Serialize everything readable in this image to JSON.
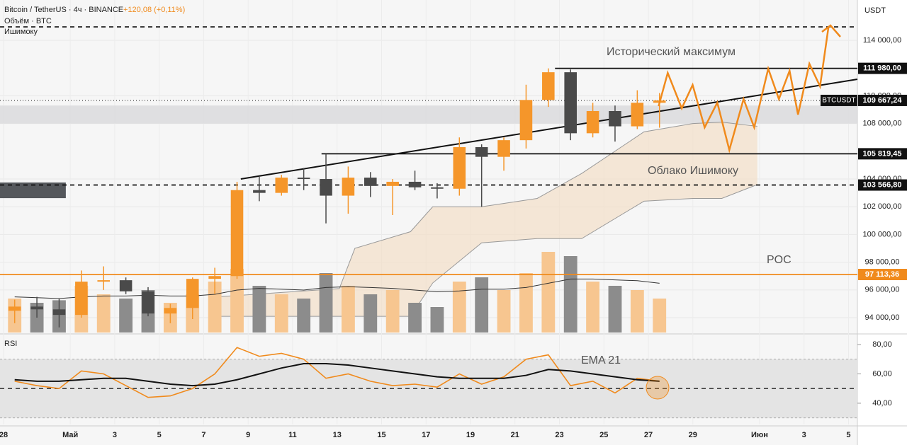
{
  "chart_data": {
    "type": "candlestick",
    "title": "Bitcoin / TetherUS · 4ч · BINANCE",
    "change": "+120,08 (+0,11%)",
    "indicators": [
      "Объём · BTC",
      "Ишимоку"
    ],
    "currency": "USDT",
    "up_color": "#f5962a",
    "down_color": "#4a4a4a",
    "grid": true,
    "x": [
      0.5,
      1.5,
      2.5,
      3.5,
      4.5,
      5.5,
      6.5,
      7.5,
      8.5,
      9.5,
      10.5,
      11.5,
      12.5,
      13.5,
      14.5,
      15.5,
      16.5,
      17.5,
      18.5,
      19.5,
      20.5,
      21.5,
      22.5,
      23.5,
      24.5,
      25.5,
      26.5,
      27.5,
      28.5,
      29.5
    ],
    "open": [
      94500,
      94800,
      94600,
      94200,
      96600,
      96700,
      95900,
      94300,
      94700,
      96800,
      97000,
      103200,
      103000,
      104100,
      104000,
      102800,
      104100,
      103500,
      103800,
      103400,
      103300,
      106300,
      105600,
      106800,
      109700,
      111700,
      107300,
      108900,
      107800,
      109500
    ],
    "high": [
      95300,
      95500,
      95400,
      97400,
      97700,
      96900,
      96200,
      95000,
      96900,
      97600,
      103800,
      104200,
      104300,
      104800,
      105800,
      104900,
      104500,
      104000,
      104600,
      103700,
      107000,
      106500,
      107000,
      110800,
      111980,
      111900,
      109500,
      109300,
      110400,
      110200
    ],
    "low": [
      93600,
      94000,
      93300,
      94000,
      96000,
      95700,
      94100,
      93600,
      93900,
      95700,
      96800,
      102400,
      102800,
      103200,
      100800,
      101500,
      102700,
      101400,
      103200,
      102600,
      102800,
      102000,
      104600,
      106200,
      109200,
      106800,
      107000,
      106700,
      107600,
      107700
    ],
    "close": [
      94800,
      94600,
      94200,
      96600,
      96700,
      95900,
      94300,
      94700,
      96800,
      97000,
      103200,
      103000,
      104100,
      104000,
      102800,
      104100,
      103500,
      103800,
      103400,
      103300,
      106300,
      105600,
      106800,
      109700,
      111700,
      107300,
      108900,
      107800,
      109500,
      109667
    ],
    "xlim": [
      -0.16,
      38.4
    ],
    "xticks": [
      {
        "value": 0,
        "label": "28"
      },
      {
        "value": 3,
        "label": "Май"
      },
      {
        "value": 5,
        "label": "3"
      },
      {
        "value": 7,
        "label": "5"
      },
      {
        "value": 9,
        "label": "7"
      },
      {
        "value": 11,
        "label": "9"
      },
      {
        "value": 13,
        "label": "11"
      },
      {
        "value": 15,
        "label": "13"
      },
      {
        "value": 17,
        "label": "15"
      },
      {
        "value": 19,
        "label": "17"
      },
      {
        "value": 21,
        "label": "19"
      },
      {
        "value": 23,
        "label": "21"
      },
      {
        "value": 25,
        "label": "23"
      },
      {
        "value": 27,
        "label": "25"
      },
      {
        "value": 29,
        "label": "27"
      },
      {
        "value": 31,
        "label": "29"
      },
      {
        "value": 34,
        "label": "Июн"
      },
      {
        "value": 36,
        "label": "3"
      },
      {
        "value": 38,
        "label": "5"
      }
    ],
    "ylim": [
      92930,
      116910
    ],
    "yticks": [
      {
        "value": 94000,
        "label": "94 000,00"
      },
      {
        "value": 96000,
        "label": "96 000,00"
      },
      {
        "value": 98000,
        "label": "98 000,00"
      },
      {
        "value": 100000,
        "label": "100 000,00"
      },
      {
        "value": 102000,
        "label": "102 000,00"
      },
      {
        "value": 104000,
        "label": "104 000,00"
      },
      {
        "value": 108000,
        "label": "108 000,00"
      },
      {
        "value": 110000,
        "label": "110 000,00"
      },
      {
        "value": 114000,
        "label": "114 000,00"
      }
    ],
    "volume": {
      "ylim": [
        0,
        100
      ],
      "up_color": "#f7c690",
      "down_color": "#8c8c8c",
      "values": [
        40,
        35,
        38,
        55,
        45,
        40,
        50,
        35,
        45,
        60,
        75,
        55,
        45,
        40,
        70,
        55,
        45,
        50,
        35,
        30,
        60,
        65,
        50,
        70,
        95,
        90,
        60,
        55,
        50,
        40
      ],
      "ma": [
        42,
        41,
        40,
        42,
        43,
        43,
        44,
        43,
        43,
        45,
        50,
        52,
        51,
        50,
        53,
        54,
        53,
        52,
        50,
        48,
        49,
        51,
        51,
        53,
        58,
        63,
        63,
        62,
        61,
        58
      ]
    },
    "ichimoku": {
      "color": "#f3dcc2",
      "x": [
        9.4,
        15.1,
        15.8,
        18.3,
        19.3,
        21.5,
        24.0,
        26.0,
        28.8,
        31.0,
        32.3,
        33.9
      ],
      "upper": [
        95480,
        96100,
        99000,
        100200,
        102000,
        102000,
        102600,
        104400,
        107400,
        108000,
        108100,
        107800
      ],
      "lower": [
        94100,
        94100,
        94100,
        94100,
        96500,
        99400,
        99700,
        99700,
        102400,
        102600,
        102600,
        103600
      ]
    },
    "zone": {
      "from": 108000,
      "to": 109300,
      "color": "#d9dadc"
    },
    "box": {
      "from": 102620,
      "to": 103750,
      "x_to": 2.8,
      "color": "#55585c"
    },
    "levels": [
      {
        "value": 114970,
        "style": "dashed",
        "color": "#222222"
      },
      {
        "value": 111980,
        "label": "111 980,00",
        "style": "solid",
        "from": 24.8,
        "color": "#111111"
      },
      {
        "value": 109667.24,
        "label": "109 667,24",
        "tag": "BTCUSDT",
        "style": "dotted",
        "color": "#111111"
      },
      {
        "value": 105819.45,
        "label": "105 819,45",
        "style": "solid",
        "from": 14.3,
        "color": "#111111"
      },
      {
        "value": 103566.8,
        "label": "103 566,80",
        "style": "dashed",
        "color": "#111111"
      },
      {
        "value": 97113.36,
        "label": "97 113,36",
        "style": "solid",
        "color": "#f08a1c"
      }
    ],
    "trendline": {
      "x": [
        10.67,
        38.4
      ],
      "y": [
        104000,
        111194
      ]
    },
    "projection": {
      "color": "#f08a1c",
      "x": [
        29.46,
        29.87,
        30.5,
        30.99,
        31.53,
        32.1,
        32.64,
        33.28,
        33.76,
        34.39,
        34.87,
        35.35,
        35.73,
        36.24,
        36.72,
        37.1
      ],
      "y": [
        109255,
        111653,
        109102,
        110786,
        107724,
        109510,
        106092,
        109765,
        107724,
        111959,
        109765,
        111806,
        108643,
        112316,
        110684,
        114969
      ]
    },
    "annotations": [
      "Исторический максимум",
      "Облако Ишимоку",
      "POC"
    ],
    "rsi": {
      "label": "RSI",
      "ema_label": "EMA 21",
      "color": "#f08a1c",
      "ylim": [
        25.5,
        85.8
      ],
      "yticks": [
        {
          "value": 80,
          "label": "80,00"
        },
        {
          "value": 60,
          "label": "60,00"
        },
        {
          "value": 40,
          "label": "40,00"
        }
      ],
      "band": [
        30,
        70
      ],
      "mid": 50,
      "values": [
        55,
        52,
        50,
        62,
        60,
        52,
        44,
        45,
        50,
        60,
        78,
        72,
        74,
        70,
        57,
        60,
        55,
        52,
        53,
        51,
        60,
        53,
        58,
        70,
        73,
        52,
        55,
        47,
        57,
        55
      ],
      "ema": [
        56,
        55,
        55,
        56,
        57,
        57,
        55,
        53,
        52,
        53,
        56,
        60,
        64,
        67,
        67,
        66,
        64,
        62,
        60,
        58,
        57,
        57,
        57,
        59,
        63,
        62,
        60,
        58,
        56,
        55
      ]
    }
  }
}
